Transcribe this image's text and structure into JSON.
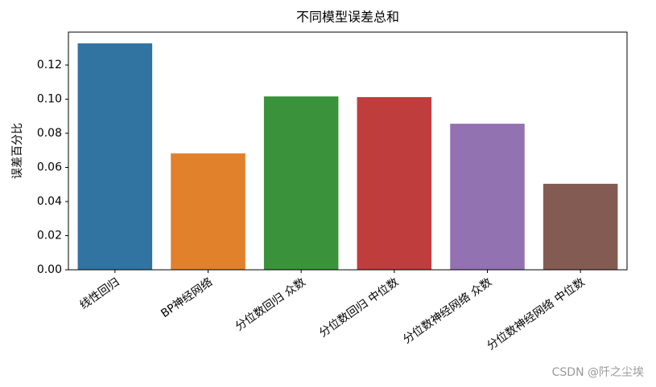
{
  "chart_data": {
    "type": "bar",
    "title": "不同模型误差总和",
    "ylabel": "误差百分比",
    "categories": [
      "线性回归",
      "BP神经网络",
      "分位数回归 众数",
      "分位数回归 中位数",
      "分位数神经网络 众数",
      "分位数神经网络 中位数"
    ],
    "values": [
      0.1327,
      0.0682,
      0.1016,
      0.1012,
      0.0856,
      0.0504
    ],
    "colors": [
      "#3274a1",
      "#e1812c",
      "#3a923a",
      "#c03d3e",
      "#9372b2",
      "#845b53"
    ],
    "ylim": [
      0,
      0.1393
    ],
    "yticks": [
      {
        "value": 0,
        "label": "0.00"
      },
      {
        "value": 0.02,
        "label": "0.02"
      },
      {
        "value": 0.04,
        "label": "0.04"
      },
      {
        "value": 0.06,
        "label": "0.06"
      },
      {
        "value": 0.08,
        "label": "0.08"
      },
      {
        "value": 0.1,
        "label": "0.10"
      },
      {
        "value": 0.12,
        "label": "0.12"
      }
    ],
    "grid": false,
    "watermark": "CSDN @阡之尘埃"
  }
}
